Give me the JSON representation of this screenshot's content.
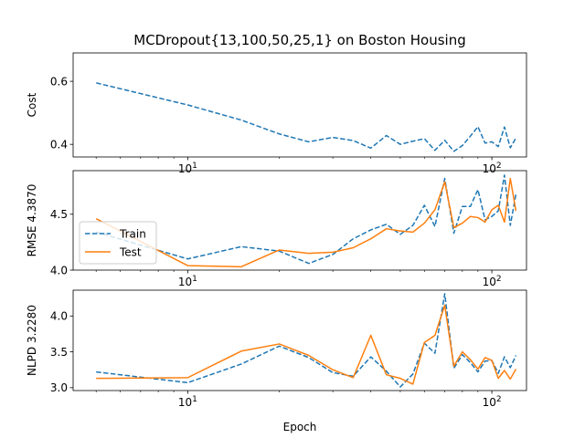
{
  "chart_data": {
    "type": "line",
    "title": "MCDropout{13,100,50,25,1} on Boston Housing",
    "xlabel": "Epoch",
    "x_scale": "log",
    "xlim": [
      4.2,
      130
    ],
    "x_major_ticks": [
      {
        "value": 10,
        "base": "10",
        "exp": "1"
      },
      {
        "value": 100,
        "base": "10",
        "exp": "2"
      }
    ],
    "colors": {
      "train": "#1f77b4",
      "test": "#ff7f0e"
    },
    "legend": {
      "location": "left",
      "entries": [
        {
          "name": "Train",
          "style": "dashed",
          "color": "#1f77b4"
        },
        {
          "name": "Test",
          "style": "solid",
          "color": "#ff7f0e"
        }
      ]
    },
    "panels": [
      {
        "id": "cost",
        "ylabel": "Cost",
        "ylim": [
          0.36,
          0.69
        ],
        "yticks": [
          {
            "value": 0.4,
            "label": "0.4"
          },
          {
            "value": 0.6,
            "label": "0.6"
          }
        ],
        "series": [
          {
            "name": "Train",
            "style": "dashed",
            "color": "#1f77b4",
            "x": [
              5,
              10,
              15,
              20,
              25,
              30,
              35,
              40,
              45,
              50,
              55,
              60,
              65,
              70,
              75,
              80,
              85,
              90,
              95,
              100,
              105,
              110,
              115,
              120
            ],
            "y": [
              0.595,
              0.525,
              0.477,
              0.433,
              0.408,
              0.422,
              0.412,
              0.388,
              0.428,
              0.4,
              0.41,
              0.418,
              0.381,
              0.413,
              0.378,
              0.396,
              0.426,
              0.456,
              0.404,
              0.408,
              0.393,
              0.455,
              0.389,
              0.42
            ]
          }
        ]
      },
      {
        "id": "rmse",
        "ylabel": "RMSE 4.3870",
        "ylim": [
          4.0,
          4.89
        ],
        "yticks": [
          {
            "value": 4.0,
            "label": "4.0"
          },
          {
            "value": 4.5,
            "label": "4.5"
          }
        ],
        "series": [
          {
            "name": "Train",
            "style": "dashed",
            "color": "#1f77b4",
            "x": [
              5,
              10,
              15,
              20,
              25,
              30,
              35,
              40,
              45,
              50,
              55,
              60,
              65,
              70,
              75,
              80,
              85,
              90,
              95,
              100,
              105,
              110,
              115,
              120
            ],
            "y": [
              4.34,
              4.1,
              4.21,
              4.17,
              4.06,
              4.14,
              4.28,
              4.36,
              4.41,
              4.32,
              4.4,
              4.58,
              4.39,
              4.82,
              4.33,
              4.57,
              4.57,
              4.72,
              4.45,
              4.48,
              4.53,
              4.85,
              4.4,
              4.68
            ]
          },
          {
            "name": "Test",
            "style": "solid",
            "color": "#ff7f0e",
            "x": [
              5,
              10,
              15,
              20,
              25,
              30,
              35,
              40,
              45,
              50,
              55,
              60,
              65,
              70,
              75,
              80,
              85,
              90,
              95,
              100,
              105,
              110,
              115,
              120
            ],
            "y": [
              4.46,
              4.04,
              4.03,
              4.18,
              4.15,
              4.16,
              4.2,
              4.28,
              4.37,
              4.35,
              4.34,
              4.42,
              4.54,
              4.79,
              4.38,
              4.42,
              4.48,
              4.47,
              4.43,
              4.54,
              4.58,
              4.43,
              4.82,
              4.53
            ]
          }
        ]
      },
      {
        "id": "nlpd",
        "ylabel": "NLPD 3.2280",
        "ylim": [
          2.96,
          4.36
        ],
        "yticks": [
          {
            "value": 3.0,
            "label": "3.0"
          },
          {
            "value": 3.5,
            "label": "3.5"
          },
          {
            "value": 4.0,
            "label": "4.0"
          }
        ],
        "series": [
          {
            "name": "Train",
            "style": "dashed",
            "color": "#1f77b4",
            "x": [
              5,
              10,
              15,
              20,
              25,
              30,
              35,
              40,
              45,
              50,
              55,
              60,
              65,
              70,
              75,
              80,
              85,
              90,
              95,
              100,
              105,
              110,
              115,
              120
            ],
            "y": [
              3.22,
              3.07,
              3.33,
              3.58,
              3.42,
              3.21,
              3.16,
              3.43,
              3.23,
              3.01,
              3.19,
              3.62,
              3.48,
              4.31,
              3.27,
              3.46,
              3.35,
              3.22,
              3.37,
              3.38,
              3.2,
              3.43,
              3.28,
              3.45
            ]
          },
          {
            "name": "Test",
            "style": "solid",
            "color": "#ff7f0e",
            "x": [
              5,
              10,
              15,
              20,
              25,
              30,
              35,
              40,
              45,
              50,
              55,
              60,
              65,
              70,
              75,
              80,
              85,
              90,
              95,
              100,
              105,
              110,
              115,
              120
            ],
            "y": [
              3.13,
              3.14,
              3.51,
              3.61,
              3.45,
              3.25,
              3.14,
              3.73,
              3.18,
              3.13,
              3.05,
              3.63,
              3.73,
              4.15,
              3.3,
              3.5,
              3.39,
              3.26,
              3.42,
              3.38,
              3.13,
              3.24,
              3.12,
              3.26
            ]
          }
        ]
      }
    ]
  }
}
